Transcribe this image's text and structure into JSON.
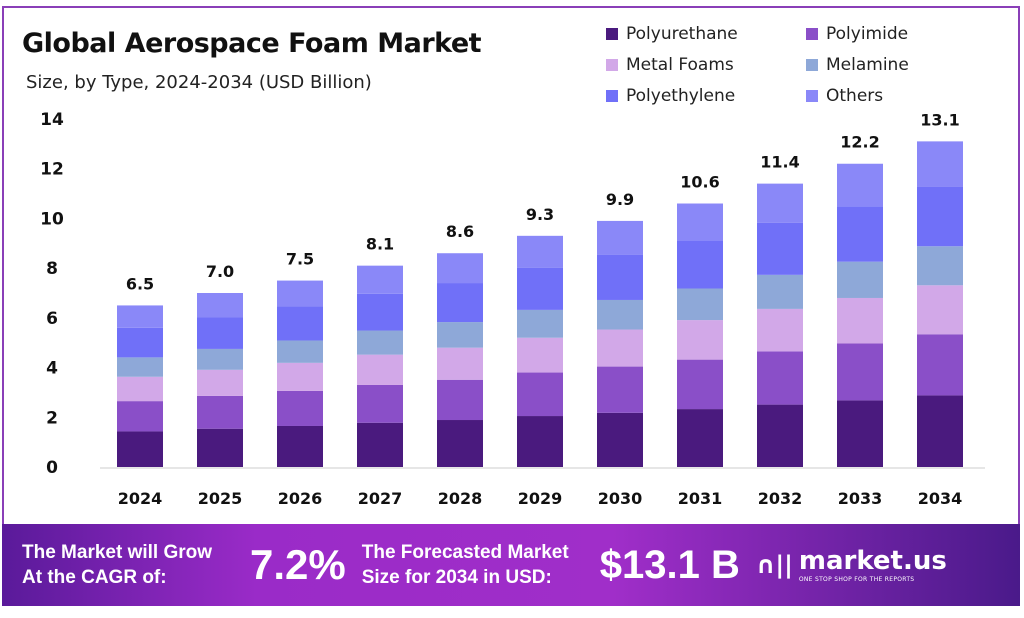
{
  "chart_data": {
    "type": "bar",
    "stacked": true,
    "title": "Global Aerospace Foam Market",
    "subtitle": "Size, by Type, 2024-2034 (USD Billion)",
    "xlabel": "",
    "ylabel": "",
    "ylim": [
      0,
      14
    ],
    "yticks": [
      0,
      2,
      4,
      6,
      8,
      10,
      12,
      14
    ],
    "grid": false,
    "legend_position": "top-right",
    "categories": [
      "2024",
      "2025",
      "2026",
      "2027",
      "2028",
      "2029",
      "2030",
      "2031",
      "2032",
      "2033",
      "2034"
    ],
    "totals": [
      "6.5",
      "7.0",
      "7.5",
      "8.1",
      "8.6",
      "9.3",
      "9.9",
      "10.6",
      "11.4",
      "12.2",
      "13.1"
    ],
    "series": [
      {
        "name": "Polyurethane",
        "color": "#4a1a7e",
        "values": [
          1.43,
          1.54,
          1.65,
          1.78,
          1.89,
          2.05,
          2.18,
          2.33,
          2.51,
          2.68,
          2.88
        ]
      },
      {
        "name": "Polyimide",
        "color": "#8a4fc8",
        "values": [
          1.22,
          1.32,
          1.41,
          1.52,
          1.62,
          1.75,
          1.86,
          1.99,
          2.14,
          2.29,
          2.46
        ]
      },
      {
        "name": "Metal Foams",
        "color": "#d2a8e8",
        "values": [
          0.98,
          1.05,
          1.13,
          1.22,
          1.29,
          1.4,
          1.49,
          1.59,
          1.71,
          1.83,
          1.97
        ]
      },
      {
        "name": "Melamine",
        "color": "#8ea8d8",
        "values": [
          0.78,
          0.84,
          0.9,
          0.97,
          1.03,
          1.12,
          1.19,
          1.27,
          1.37,
          1.46,
          1.57
        ]
      },
      {
        "name": "Polyethylene",
        "color": "#7070f8",
        "values": [
          1.19,
          1.28,
          1.37,
          1.48,
          1.57,
          1.7,
          1.81,
          1.94,
          2.09,
          2.23,
          2.4
        ]
      },
      {
        "name": "Others",
        "color": "#8a88f8",
        "values": [
          0.9,
          0.97,
          1.04,
          1.13,
          1.2,
          1.28,
          1.37,
          1.48,
          1.58,
          1.71,
          1.82
        ]
      }
    ]
  },
  "footer": {
    "cagr_label": "The Market will Grow At the CAGR of:",
    "cagr_value": "7.2%",
    "forecast_label": "The Forecasted Market Size for 2034 in USD:",
    "forecast_value": "$13.1 B",
    "brand": "market.us",
    "brand_tagline": "ONE STOP SHOP FOR THE REPORTS"
  }
}
